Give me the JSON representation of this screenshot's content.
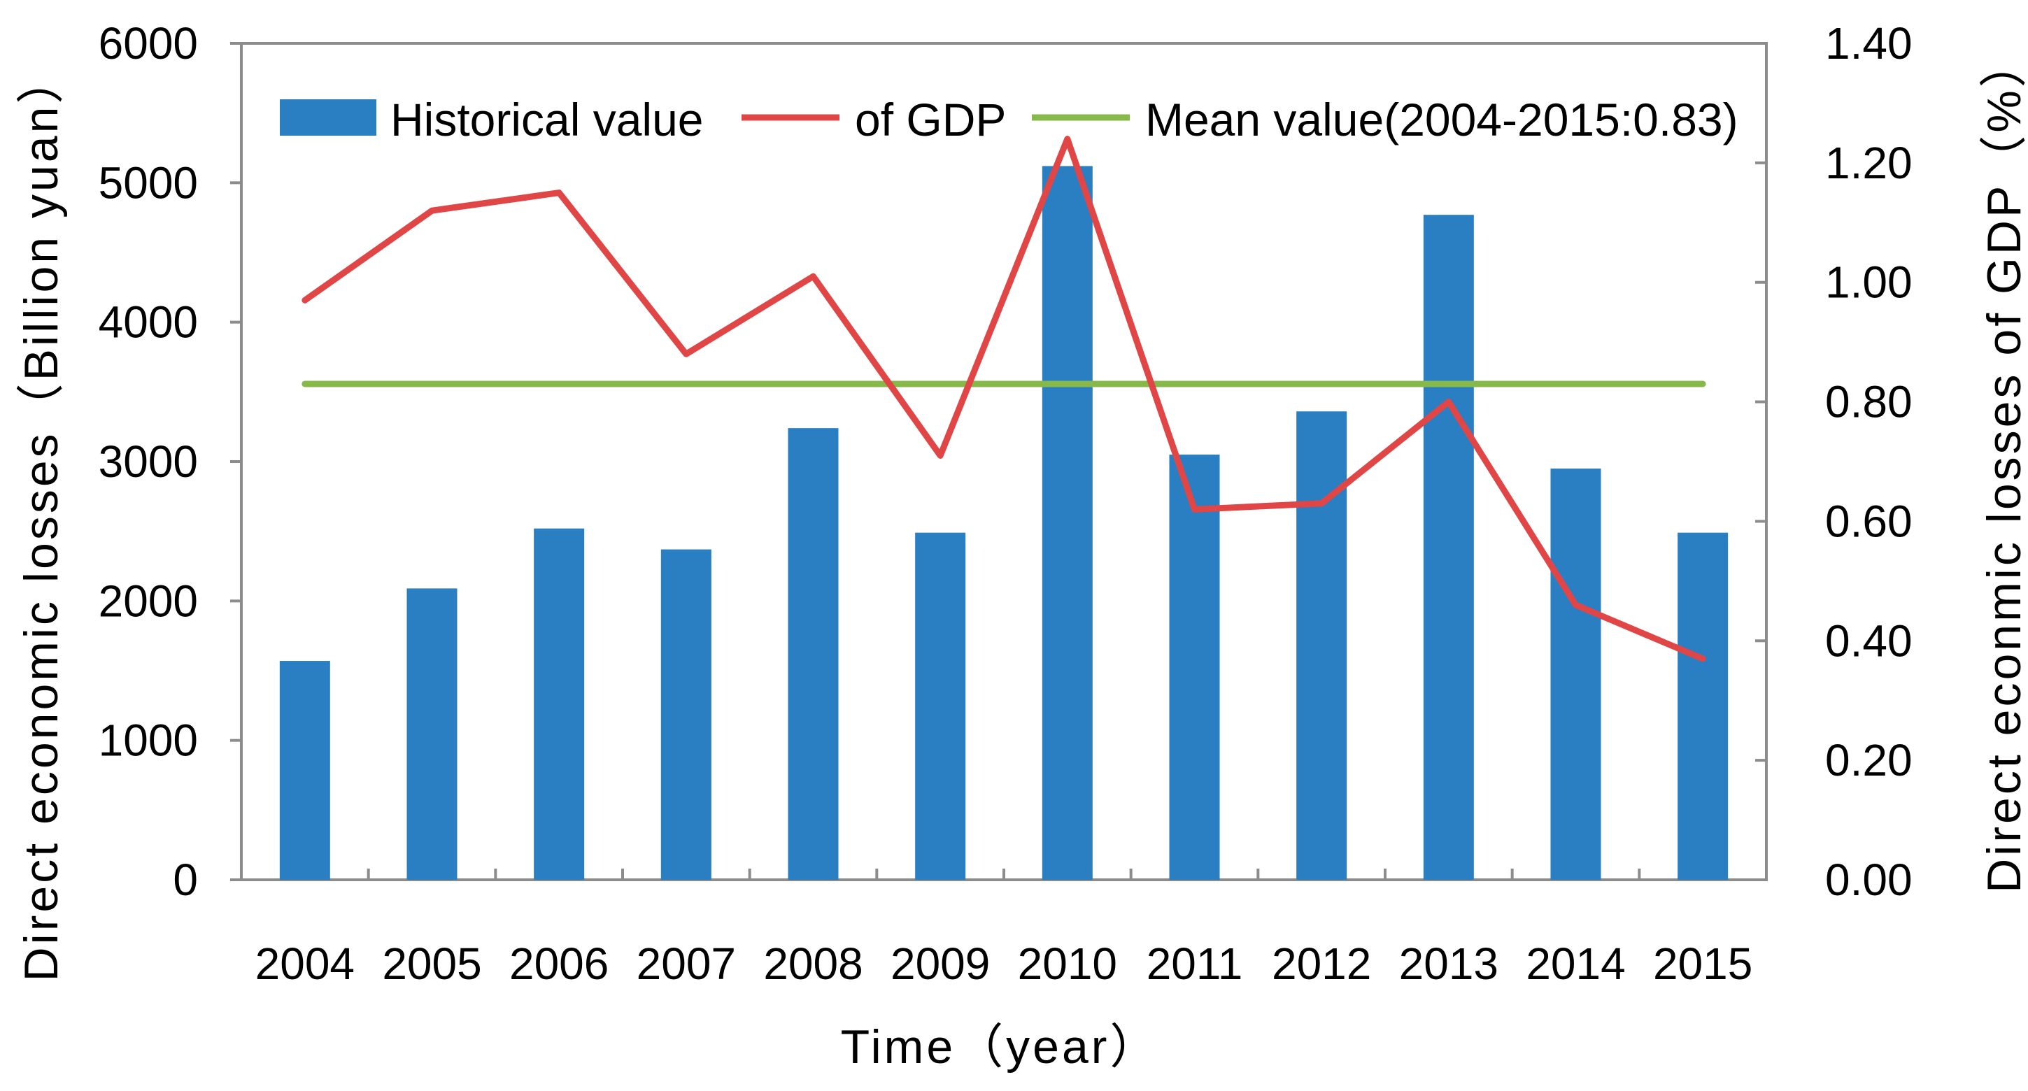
{
  "chart_data": {
    "type": "bar+line",
    "categories": [
      "2004",
      "2005",
      "2006",
      "2007",
      "2008",
      "2009",
      "2010",
      "2011",
      "2012",
      "2013",
      "2014",
      "2015"
    ],
    "series": [
      {
        "name": "Historical value",
        "type": "bar",
        "axis": "left",
        "color": "#2a7fc2",
        "values": [
          1570,
          2090,
          2520,
          2370,
          3240,
          2490,
          5120,
          3050,
          3360,
          4770,
          2950,
          2490
        ]
      },
      {
        "name": "of GDP",
        "type": "line",
        "axis": "right",
        "color": "#e04646",
        "values": [
          0.97,
          1.12,
          1.15,
          0.88,
          1.01,
          0.71,
          1.24,
          0.62,
          0.63,
          0.8,
          0.46,
          0.37
        ]
      },
      {
        "name": "Mean value(2004-2015:0.83)",
        "type": "line",
        "axis": "right",
        "color": "#86b84a",
        "values": [
          0.83,
          0.83,
          0.83,
          0.83,
          0.83,
          0.83,
          0.83,
          0.83,
          0.83,
          0.83,
          0.83,
          0.83
        ]
      }
    ],
    "xlabel": "Time（year）",
    "ylabel_left": "Direct  economic losses（Billion yuan）",
    "ylabel_right": "Direct econmic losses of GDP（%）",
    "ylim_left": [
      0,
      6000
    ],
    "ylim_right": [
      0,
      1.4
    ],
    "yticks_left": [
      "0",
      "1000",
      "2000",
      "3000",
      "4000",
      "5000",
      "6000"
    ],
    "yticks_right": [
      "0.00",
      "0.20",
      "0.40",
      "0.60",
      "0.80",
      "1.00",
      "1.20",
      "1.40"
    ],
    "legend_position": "top",
    "grid": false
  }
}
